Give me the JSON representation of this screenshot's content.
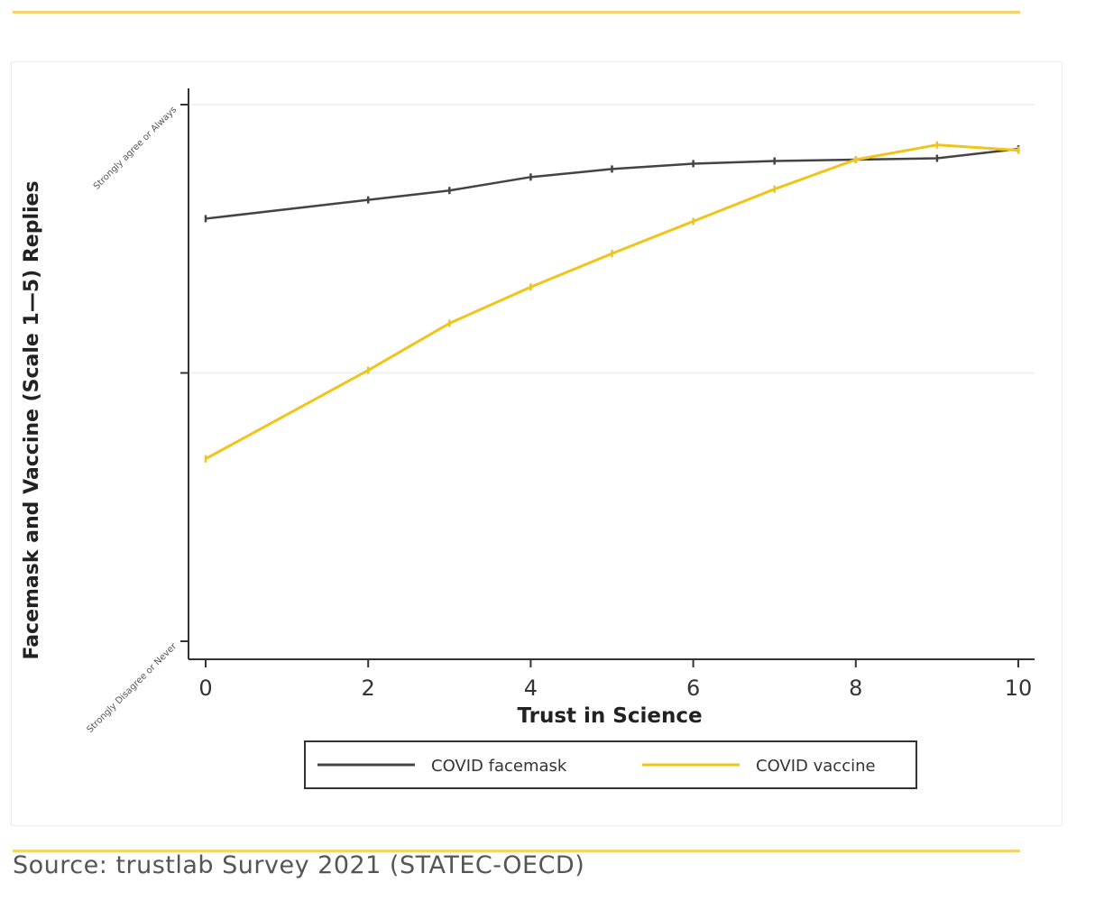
{
  "source": "Source: trustlab Survey 2021 (STATEC-OECD)",
  "chart_data": {
    "type": "line",
    "title": "",
    "xlabel": "Trust in Science",
    "ylabel": "Facemask and Vaccine (Scale 1—5) Replies",
    "xlim": [
      0,
      10
    ],
    "ylim": [
      1,
      5
    ],
    "xticks": [
      0,
      2,
      4,
      6,
      8,
      10
    ],
    "yticks": [
      {
        "value": 1,
        "label": "Strongly Disagree or Never"
      },
      {
        "value": 3,
        "label": ""
      },
      {
        "value": 5,
        "label": "Strongly agree or Always"
      }
    ],
    "grid": "horizontal",
    "legend": "bottom",
    "series": [
      {
        "name": "COVID facemask",
        "color": "#444444",
        "x": [
          0,
          2,
          3,
          4,
          5,
          6,
          7,
          8,
          9,
          10
        ],
        "values": [
          4.15,
          4.29,
          4.36,
          4.46,
          4.52,
          4.56,
          4.58,
          4.59,
          4.6,
          4.67
        ]
      },
      {
        "name": "COVID vaccine",
        "color": "#f0c419",
        "x": [
          0,
          2,
          3,
          4,
          5,
          6,
          7,
          8,
          9,
          10
        ],
        "values": [
          2.36,
          3.02,
          3.37,
          3.64,
          3.89,
          4.13,
          4.37,
          4.59,
          4.7,
          4.66
        ]
      }
    ]
  }
}
